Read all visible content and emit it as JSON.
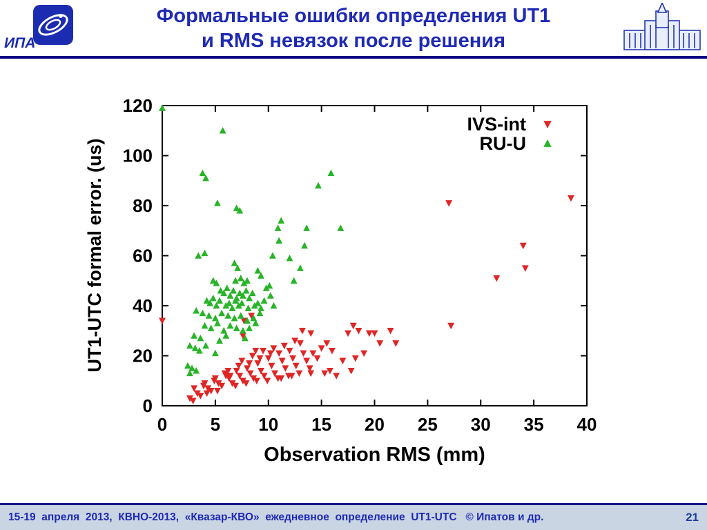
{
  "header": {
    "title_line1": "Формальные ошибки определения UT1",
    "title_line2": "и RMS невязок после решения",
    "logo_text": "ИПА"
  },
  "footer": {
    "text": "15-19  апреля  2013,  КВНО-2013,  «Квазар-КВО»  ежедневное  определение  UT1-UTC   © Ипатов и др.",
    "page_number": "21"
  },
  "colors": {
    "title_blue": "#1f2ab4",
    "navy_rule": "#000080",
    "footer_bg": "#c9d5e3",
    "axis_black": "#000000",
    "red_series": "#e02525",
    "green_series": "#28b428"
  },
  "chart_data": {
    "type": "scatter",
    "title": "",
    "xlabel": "Observation RMS (mm)",
    "ylabel": "UT1-UTC formal error. (us)",
    "xlim": [
      0,
      40
    ],
    "ylim": [
      0,
      120
    ],
    "xticks": [
      0,
      5,
      10,
      15,
      20,
      25,
      30,
      35,
      40
    ],
    "yticks": [
      0,
      20,
      40,
      60,
      80,
      100,
      120
    ],
    "grid": false,
    "legend_position": "top-right-inside",
    "series": [
      {
        "name": "IVS-int",
        "marker": "triangle-down",
        "color": "#e02525",
        "points": [
          [
            0,
            34
          ],
          [
            38.5,
            83
          ],
          [
            34.0,
            64
          ],
          [
            34.2,
            55
          ],
          [
            31.5,
            51
          ],
          [
            27.0,
            81
          ],
          [
            27.2,
            32
          ],
          [
            21.5,
            30
          ],
          [
            22.0,
            25
          ],
          [
            20.5,
            25
          ],
          [
            20.0,
            29
          ],
          [
            19.5,
            29
          ],
          [
            19.0,
            21
          ],
          [
            18.5,
            30
          ],
          [
            18.2,
            19
          ],
          [
            18.0,
            32
          ],
          [
            17.8,
            14
          ],
          [
            17.5,
            29
          ],
          [
            17.0,
            18
          ],
          [
            16.4,
            12
          ],
          [
            16.0,
            22
          ],
          [
            15.8,
            14
          ],
          [
            15.5,
            25
          ],
          [
            15.3,
            13
          ],
          [
            15.0,
            23
          ],
          [
            14.6,
            19
          ],
          [
            14.2,
            21
          ],
          [
            14.0,
            29
          ],
          [
            14.0,
            13
          ],
          [
            13.9,
            15
          ],
          [
            13.6,
            18
          ],
          [
            13.3,
            21
          ],
          [
            13.2,
            30
          ],
          [
            13.0,
            25
          ],
          [
            12.9,
            13
          ],
          [
            12.6,
            16
          ],
          [
            12.5,
            26
          ],
          [
            12.3,
            19
          ],
          [
            12.2,
            12
          ],
          [
            12.0,
            22
          ],
          [
            11.9,
            12
          ],
          [
            11.6,
            15
          ],
          [
            11.5,
            24
          ],
          [
            11.3,
            18
          ],
          [
            11.2,
            11
          ],
          [
            11.0,
            21
          ],
          [
            10.9,
            11
          ],
          [
            10.6,
            13
          ],
          [
            10.5,
            23
          ],
          [
            10.3,
            16
          ],
          [
            10.2,
            21
          ],
          [
            10.0,
            19
          ],
          [
            9.9,
            10
          ],
          [
            9.6,
            12
          ],
          [
            9.5,
            22
          ],
          [
            9.3,
            14
          ],
          [
            9.2,
            19
          ],
          [
            9.0,
            17
          ],
          [
            8.9,
            10
          ],
          [
            8.8,
            22
          ],
          [
            8.6,
            11
          ],
          [
            8.5,
            20
          ],
          [
            8.4,
            36
          ],
          [
            8.3,
            13
          ],
          [
            8.2,
            17
          ],
          [
            8.0,
            15
          ],
          [
            7.9,
            9
          ],
          [
            7.7,
            34
          ],
          [
            7.6,
            28
          ],
          [
            7.6,
            10
          ],
          [
            7.5,
            18
          ],
          [
            7.3,
            12
          ],
          [
            7.2,
            16
          ],
          [
            7.0,
            14
          ],
          [
            6.9,
            8
          ],
          [
            6.6,
            9
          ],
          [
            6.4,
            12
          ],
          [
            6.3,
            11
          ],
          [
            6.2,
            14
          ],
          [
            6.0,
            12
          ],
          [
            5.9,
            13
          ],
          [
            5.6,
            8
          ],
          [
            5.3,
            9
          ],
          [
            5.2,
            6
          ],
          [
            5.0,
            11
          ],
          [
            4.9,
            10
          ],
          [
            4.6,
            6
          ],
          [
            4.3,
            7
          ],
          [
            4.2,
            5
          ],
          [
            4.0,
            9
          ],
          [
            3.9,
            8
          ],
          [
            3.6,
            4
          ],
          [
            3.3,
            5
          ],
          [
            3.0,
            7
          ],
          [
            2.9,
            2
          ],
          [
            2.6,
            3
          ]
        ]
      },
      {
        "name": "RU-U",
        "marker": "triangle-up",
        "color": "#28b428",
        "points": [
          [
            0,
            119
          ],
          [
            5.7,
            110
          ],
          [
            3.8,
            93
          ],
          [
            4.1,
            91
          ],
          [
            15.9,
            93
          ],
          [
            14.7,
            88
          ],
          [
            5.2,
            81
          ],
          [
            7.0,
            79
          ],
          [
            7.3,
            78
          ],
          [
            11.2,
            74
          ],
          [
            10.9,
            71
          ],
          [
            13.6,
            71
          ],
          [
            16.8,
            71
          ],
          [
            13.4,
            64
          ],
          [
            11.0,
            66
          ],
          [
            3.4,
            60
          ],
          [
            4.0,
            61
          ],
          [
            10.4,
            60
          ],
          [
            12.0,
            59
          ],
          [
            6.8,
            57
          ],
          [
            7.1,
            55
          ],
          [
            13.0,
            55
          ],
          [
            9.0,
            54
          ],
          [
            9.3,
            52
          ],
          [
            12.4,
            50
          ],
          [
            4.8,
            50
          ],
          [
            5.1,
            49
          ],
          [
            6.9,
            50
          ],
          [
            7.4,
            51
          ],
          [
            7.7,
            49
          ],
          [
            8.0,
            50
          ],
          [
            9.8,
            47
          ],
          [
            10.1,
            48
          ],
          [
            5.5,
            46
          ],
          [
            5.8,
            45
          ],
          [
            6.1,
            47
          ],
          [
            6.4,
            44
          ],
          [
            6.7,
            46
          ],
          [
            7.0,
            43
          ],
          [
            7.3,
            45
          ],
          [
            7.6,
            44
          ],
          [
            7.9,
            46
          ],
          [
            8.2,
            43
          ],
          [
            8.5,
            45
          ],
          [
            10.2,
            44
          ],
          [
            4.2,
            42
          ],
          [
            4.5,
            41
          ],
          [
            4.8,
            43
          ],
          [
            5.1,
            40
          ],
          [
            5.4,
            42
          ],
          [
            6.0,
            40
          ],
          [
            6.3,
            41
          ],
          [
            6.6,
            39
          ],
          [
            6.9,
            42
          ],
          [
            7.2,
            40
          ],
          [
            7.5,
            41
          ],
          [
            8.1,
            39
          ],
          [
            8.7,
            40
          ],
          [
            9.0,
            41
          ],
          [
            9.3,
            39
          ],
          [
            9.6,
            42
          ],
          [
            10.5,
            40
          ],
          [
            3.2,
            38
          ],
          [
            3.8,
            37
          ],
          [
            4.4,
            36
          ],
          [
            5.0,
            35
          ],
          [
            5.6,
            37
          ],
          [
            6.2,
            36
          ],
          [
            6.8,
            35
          ],
          [
            7.4,
            36
          ],
          [
            8.0,
            34
          ],
          [
            8.6,
            35
          ],
          [
            9.2,
            37
          ],
          [
            4.0,
            32
          ],
          [
            4.6,
            31
          ],
          [
            5.2,
            33
          ],
          [
            5.8,
            30
          ],
          [
            6.4,
            32
          ],
          [
            7.0,
            31
          ],
          [
            7.6,
            30
          ],
          [
            8.2,
            31
          ],
          [
            8.8,
            33
          ],
          [
            3.0,
            28
          ],
          [
            3.6,
            27
          ],
          [
            5.4,
            26
          ],
          [
            6.0,
            28
          ],
          [
            7.8,
            27
          ],
          [
            2.6,
            24
          ],
          [
            3.1,
            23
          ],
          [
            3.5,
            22
          ],
          [
            4.1,
            24
          ],
          [
            5.0,
            21
          ],
          [
            2.4,
            16
          ],
          [
            2.8,
            15
          ],
          [
            3.2,
            14
          ],
          [
            2.6,
            13
          ]
        ]
      }
    ]
  }
}
